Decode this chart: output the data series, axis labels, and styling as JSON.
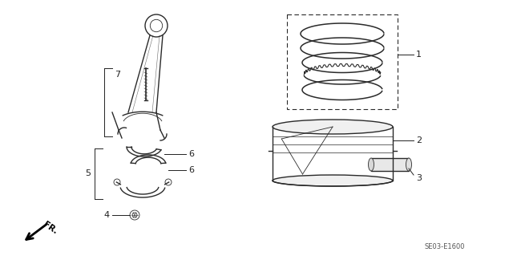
{
  "bg_color": "#ffffff",
  "line_color": "#2a2a2a",
  "label_color": "#222222",
  "part_code": "SE03-E1600",
  "fig_width": 6.4,
  "fig_height": 3.19,
  "dpi": 100
}
